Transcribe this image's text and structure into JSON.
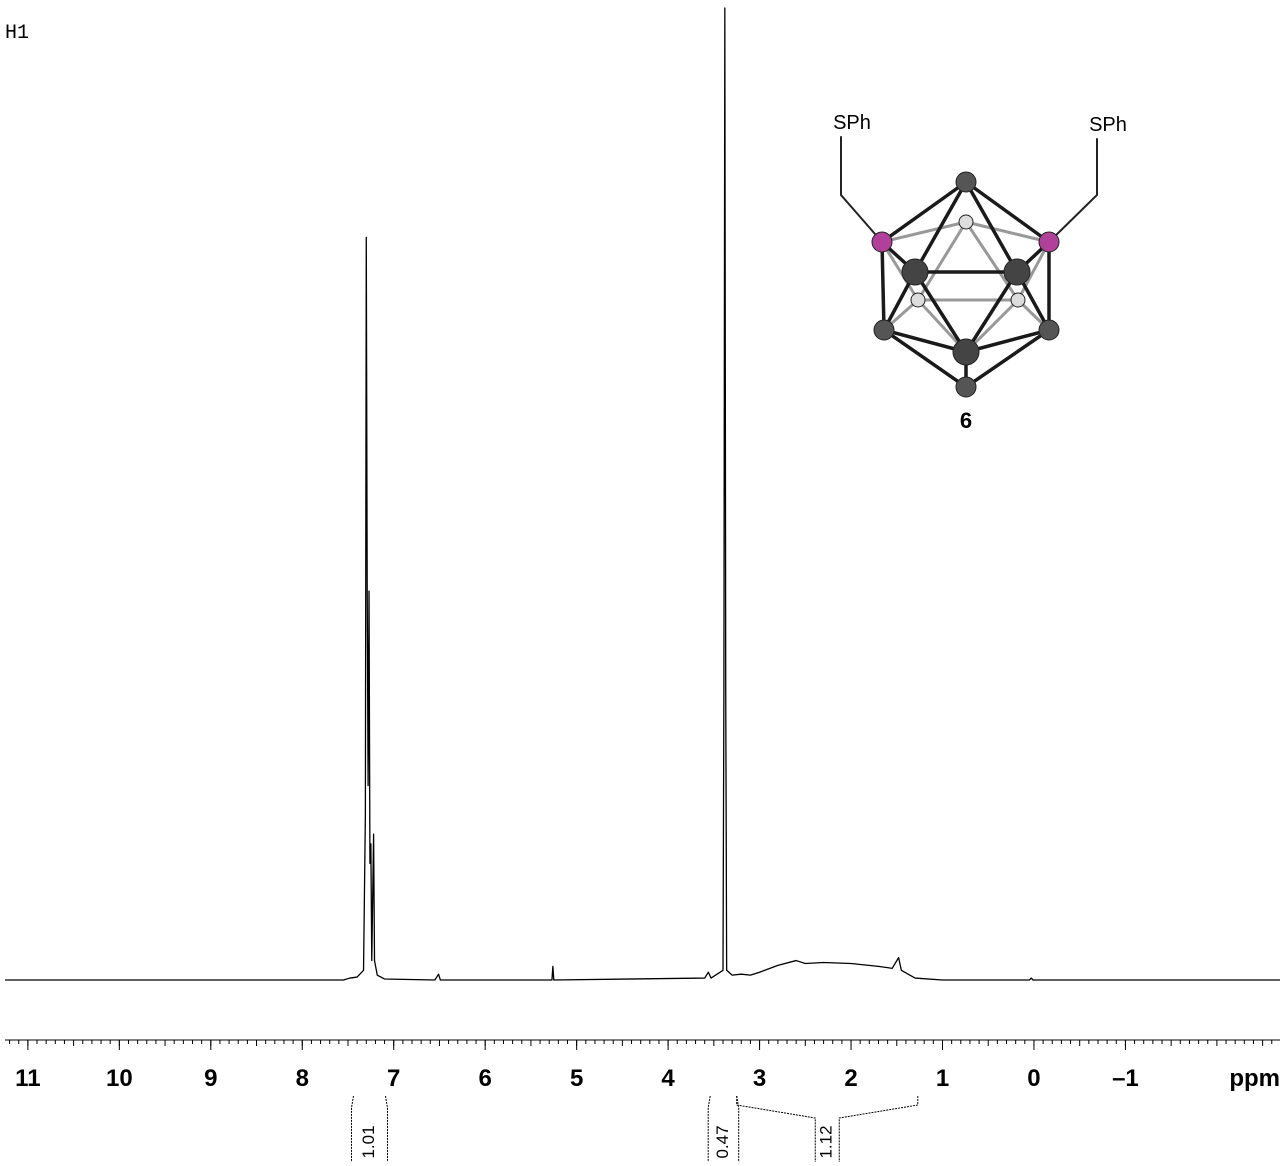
{
  "chart_data": {
    "type": "line",
    "label": "H1",
    "x_label": "ppm",
    "color": "#000000",
    "xlim": [
      11.25,
      -2.69
    ],
    "ylim": [
      0,
      100
    ],
    "xticks": [
      11,
      10,
      9,
      8,
      7,
      6,
      5,
      4,
      3,
      2,
      1,
      0,
      {
        "value": -1,
        "label": "–1"
      }
    ],
    "x": [
      11.25,
      7.55,
      7.48,
      7.4,
      7.33,
      7.31,
      7.3,
      7.29,
      7.28,
      7.27,
      7.26,
      7.25,
      7.24,
      7.22,
      7.21,
      7.18,
      7.1,
      6.55,
      6.51,
      6.49,
      5.3,
      5.27,
      5.26,
      5.25,
      3.6,
      3.56,
      3.53,
      3.4,
      3.39,
      3.38,
      3.37,
      3.36,
      3.3,
      3.2,
      3.1,
      3.0,
      2.8,
      2.6,
      2.5,
      2.3,
      2.0,
      1.7,
      1.55,
      1.48,
      1.45,
      1.3,
      1.0,
      0.05,
      0.03,
      0.01,
      -2.69
    ],
    "values": [
      0,
      0,
      0.2,
      0.3,
      1.0,
      17,
      76.4,
      40,
      20,
      40,
      12,
      14,
      2,
      15,
      2,
      0.5,
      0.1,
      0,
      0.6,
      0,
      0,
      0,
      1.4,
      0,
      0.2,
      0.8,
      0.2,
      1,
      30,
      100,
      30,
      1,
      0.5,
      0.6,
      0.5,
      0.8,
      1.5,
      2,
      1.7,
      1.8,
      1.7,
      1.4,
      1.2,
      2.3,
      1.0,
      0.2,
      0,
      0,
      0.2,
      0,
      0
    ],
    "integrals": [
      {
        "from": 7.44,
        "to": 7.09,
        "value": 1.01
      },
      {
        "from": 3.54,
        "to": 3.25,
        "value": 0.47
      },
      {
        "from": 3.25,
        "to": 1.27,
        "value": 1.12
      }
    ],
    "structure": {
      "substituents": [
        "SPh",
        "SPh"
      ],
      "compound_label": "6"
    }
  }
}
